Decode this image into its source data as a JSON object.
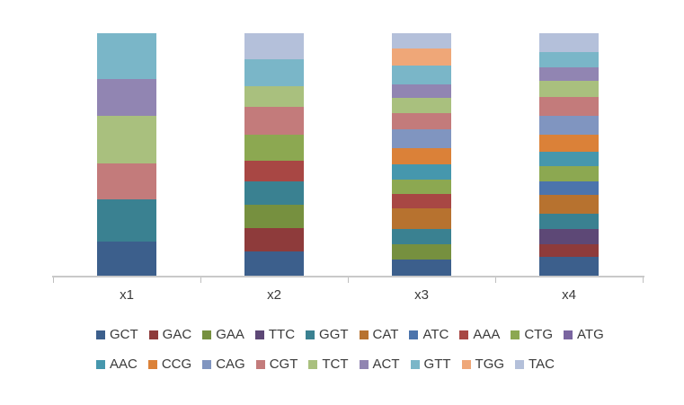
{
  "chart_data": {
    "type": "bar",
    "subtype": "percent-stacked-column",
    "title": "",
    "xlabel": "",
    "ylabel": "",
    "grid": false,
    "y_axis_visible": false,
    "legend_position": "bottom",
    "background_color": "#ffffff",
    "axis_line_color": "#c9c9c9",
    "tick_color": "#bfbfbf",
    "text_color": "#3a3a3a",
    "categories": [
      "x1",
      "x2",
      "x3",
      "x4"
    ],
    "series": [
      {
        "name": "GCT",
        "color": "#3C5F8C",
        "values": [
          14.2,
          10.1,
          6.8,
          7.8
        ]
      },
      {
        "name": "GAC",
        "color": "#8E3B3B",
        "values": [
          0,
          9.4,
          0,
          5.2
        ]
      },
      {
        "name": "GAA",
        "color": "#76903F",
        "values": [
          0,
          9.6,
          6.2,
          0
        ]
      },
      {
        "name": "TTC",
        "color": "#5D4876",
        "values": [
          0,
          0,
          0,
          6.2
        ]
      },
      {
        "name": "GGT",
        "color": "#3A8191",
        "values": [
          17.3,
          9.9,
          6.4,
          6.4
        ]
      },
      {
        "name": "CAT",
        "color": "#B7722F",
        "values": [
          0,
          0,
          8.4,
          7.8
        ]
      },
      {
        "name": "ATC",
        "color": "#4C74AC",
        "values": [
          0,
          0,
          0,
          5.6
        ]
      },
      {
        "name": "AAA",
        "color": "#A84744",
        "values": [
          0,
          8.4,
          6.2,
          0
        ]
      },
      {
        "name": "CTG",
        "color": "#8CA851",
        "values": [
          0,
          10.6,
          5.8,
          6.2
        ]
      },
      {
        "name": "ATG",
        "color": "#7A65A0",
        "values": [
          0,
          0,
          0,
          0
        ]
      },
      {
        "name": "AAC",
        "color": "#4697AD",
        "values": [
          0,
          0,
          6.2,
          6.2
        ]
      },
      {
        "name": "CCG",
        "color": "#DB8138",
        "values": [
          0,
          0,
          6.9,
          7.0
        ]
      },
      {
        "name": "CAG",
        "color": "#8095C0",
        "values": [
          0,
          0,
          7.7,
          7.8
        ]
      },
      {
        "name": "CGT",
        "color": "#C37B7B",
        "values": [
          14.8,
          11.6,
          6.8,
          7.7
        ]
      },
      {
        "name": "TCT",
        "color": "#A9C07E",
        "values": [
          19.8,
          8.5,
          6.2,
          6.6
        ]
      },
      {
        "name": "ACT",
        "color": "#9185B2",
        "values": [
          15.1,
          0,
          5.8,
          5.9
        ]
      },
      {
        "name": "GTT",
        "color": "#7AB6C8",
        "values": [
          18.9,
          11.2,
          7.8,
          6.2
        ]
      },
      {
        "name": "TGG",
        "color": "#EFA778",
        "values": [
          0,
          0,
          6.8,
          0
        ]
      },
      {
        "name": "TAC",
        "color": "#B4C0DA",
        "values": [
          0,
          10.6,
          6.4,
          7.7
        ]
      }
    ],
    "legend_rows": [
      [
        "GCT",
        "GAC",
        "GAA",
        "TTC",
        "GGT",
        "CAT",
        "ATC",
        "AAA",
        "CTG",
        "ATG"
      ],
      [
        "AAC",
        "CCG",
        "CAG",
        "CGT",
        "TCT",
        "ACT",
        "GTT",
        "TGG",
        "TAC"
      ]
    ]
  }
}
